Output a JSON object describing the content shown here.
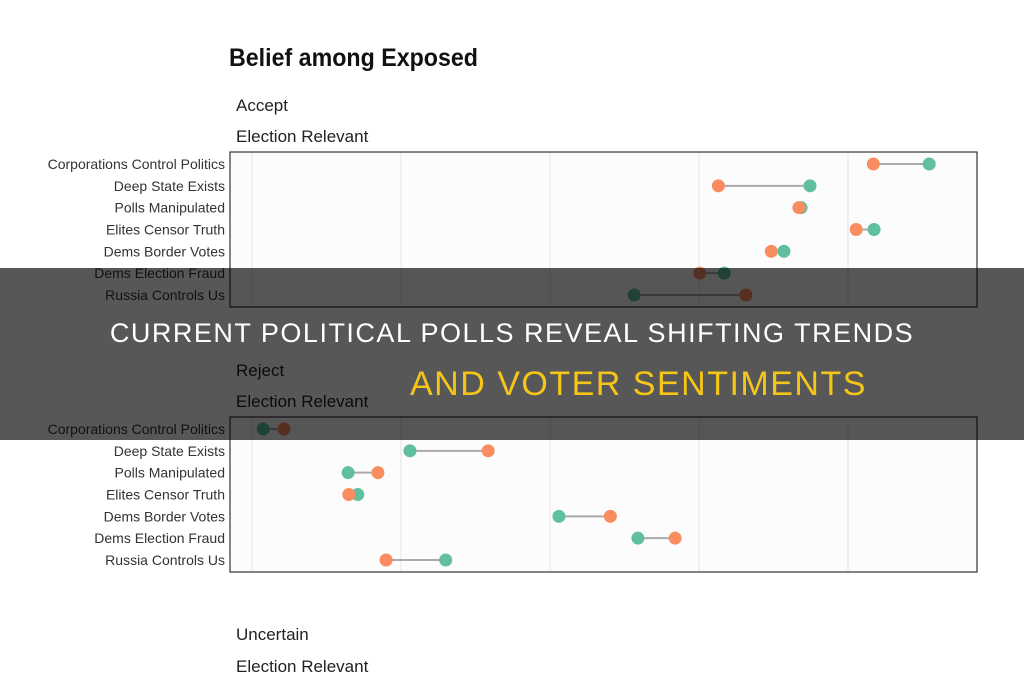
{
  "overlay": {
    "line1": "Current Political Polls Reveal Shifting Trends",
    "line2": "And Voter Sentiments"
  },
  "chart_data": {
    "type": "dumbbell",
    "title": "Belief among Exposed",
    "xlim": [
      0,
      0.97
    ],
    "grid": true,
    "gridlines_x": [
      0,
      0.2,
      0.4,
      0.6,
      0.8
    ],
    "categories": [
      "Corporations Control Politics",
      "Deep State Exists",
      "Polls Manipulated",
      "Elites Censor Truth",
      "Dems Border Votes",
      "Dems Election Fraud",
      "Russia Controls Us"
    ],
    "series_colors": {
      "orange": "#f98d5f",
      "green": "#5fbf9f",
      "connector": "#aaaaaa"
    },
    "panels": [
      {
        "facet": "Accept",
        "subfacet": "Election Relevant",
        "orange": [
          0.834,
          0.626,
          0.734,
          0.811,
          0.697,
          0.601,
          0.663
        ],
        "green": [
          0.909,
          0.749,
          0.737,
          0.835,
          0.714,
          0.634,
          0.513
        ]
      },
      {
        "facet": "Reject",
        "subfacet": "Election Relevant",
        "orange": [
          0.043,
          0.317,
          0.169,
          0.13,
          0.481,
          0.568,
          0.18
        ],
        "green": [
          0.015,
          0.212,
          0.129,
          0.142,
          0.412,
          0.518,
          0.26
        ]
      },
      {
        "facet": "Uncertain",
        "subfacet": "Election Relevant"
      }
    ]
  }
}
